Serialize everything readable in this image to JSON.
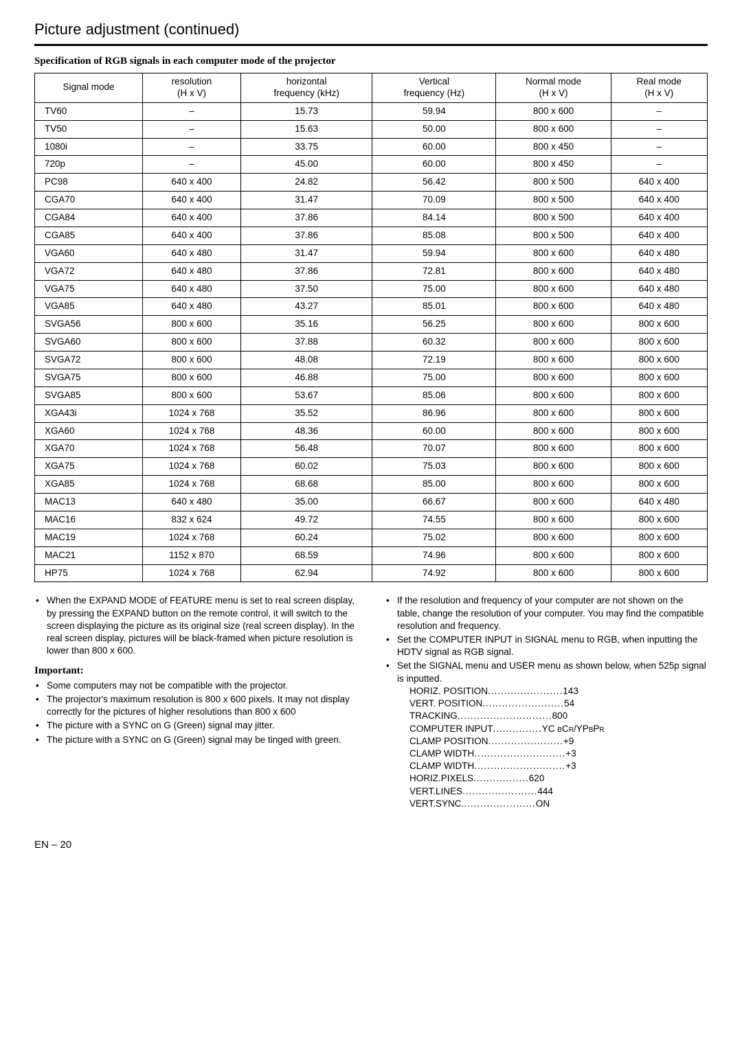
{
  "title": "Picture adjustment (continued)",
  "subtitle": "Specification of RGB signals in each computer mode of the projector",
  "table": {
    "headers": [
      "Signal mode",
      "resolution\n(H x V)",
      "horizontal\nfrequency (kHz)",
      "Vertical\nfrequency (Hz)",
      "Normal mode\n(H x V)",
      "Real mode\n(H x V)"
    ],
    "rows": [
      [
        "TV60",
        "–",
        "15.73",
        "59.94",
        "800 x 600",
        "–"
      ],
      [
        "TV50",
        "–",
        "15.63",
        "50.00",
        "800 x 600",
        "–"
      ],
      [
        "1080i",
        "–",
        "33.75",
        "60.00",
        "800 x 450",
        "–"
      ],
      [
        "720p",
        "–",
        "45.00",
        "60.00",
        "800 x 450",
        "–"
      ],
      [
        "PC98",
        "640 x 400",
        "24.82",
        "56.42",
        "800 x 500",
        "640 x 400"
      ],
      [
        "CGA70",
        "640 x 400",
        "31.47",
        "70.09",
        "800 x 500",
        "640 x 400"
      ],
      [
        "CGA84",
        "640 x 400",
        "37.86",
        "84.14",
        "800 x 500",
        "640 x 400"
      ],
      [
        "CGA85",
        "640 x 400",
        "37.86",
        "85.08",
        "800 x 500",
        "640 x 400"
      ],
      [
        "VGA60",
        "640 x 480",
        "31.47",
        "59.94",
        "800 x 600",
        "640 x 480"
      ],
      [
        "VGA72",
        "640 x 480",
        "37.86",
        "72.81",
        "800 x 600",
        "640 x 480"
      ],
      [
        "VGA75",
        "640 x 480",
        "37.50",
        "75.00",
        "800 x 600",
        "640 x 480"
      ],
      [
        "VGA85",
        "640 x 480",
        "43.27",
        "85.01",
        "800 x 600",
        "640 x 480"
      ],
      [
        "SVGA56",
        "800 x 600",
        "35.16",
        "56.25",
        "800 x 600",
        "800 x 600"
      ],
      [
        "SVGA60",
        "800 x 600",
        "37.88",
        "60.32",
        "800 x 600",
        "800 x 600"
      ],
      [
        "SVGA72",
        "800 x 600",
        "48.08",
        "72.19",
        "800 x 600",
        "800 x 600"
      ],
      [
        "SVGA75",
        "800 x 600",
        "46.88",
        "75.00",
        "800 x 600",
        "800 x 600"
      ],
      [
        "SVGA85",
        "800 x 600",
        "53.67",
        "85.06",
        "800 x 600",
        "800 x 600"
      ],
      [
        "XGA43i",
        "1024 x 768",
        "35.52",
        "86.96",
        "800 x 600",
        "800 x 600"
      ],
      [
        "XGA60",
        "1024 x 768",
        "48.36",
        "60.00",
        "800 x 600",
        "800 x 600"
      ],
      [
        "XGA70",
        "1024 x 768",
        "56.48",
        "70.07",
        "800 x 600",
        "800 x 600"
      ],
      [
        "XGA75",
        "1024 x 768",
        "60.02",
        "75.03",
        "800 x 600",
        "800 x 600"
      ],
      [
        "XGA85",
        "1024 x 768",
        "68.68",
        "85.00",
        "800 x 600",
        "800 x 600"
      ],
      [
        "MAC13",
        "640 x 480",
        "35.00",
        "66.67",
        "800 x 600",
        "640 x 480"
      ],
      [
        "MAC16",
        "832 x 624",
        "49.72",
        "74.55",
        "800 x 600",
        "800 x 600"
      ],
      [
        "MAC19",
        "1024 x 768",
        "60.24",
        "75.02",
        "800 x 600",
        "800 x 600"
      ],
      [
        "MAC21",
        "1152 x 870",
        "68.59",
        "74.96",
        "800 x 600",
        "800 x 600"
      ],
      [
        "HP75",
        "1024 x 768",
        "62.94",
        "74.92",
        "800 x 600",
        "800 x 600"
      ]
    ]
  },
  "left_col": {
    "first_bullet": "When the EXPAND MODE of FEATURE menu is set to real screen display, by pressing the EXPAND button on the remote control, it will switch to the screen displaying the picture as its original size (real screen display).  In the real screen display, pictures will be black-framed when picture resolution is lower than 800 x 600.",
    "important_label": "Important:",
    "important_items": [
      "Some computers may not be compatible with the projector.",
      "The projector's maximum resolution is     800 x 600 pixels.  It may not display correctly for the pictures of higher resolutions than    800 x 600",
      "The picture with a SYNC on G (Green) signal may jitter.",
      "The picture with a SYNC on G (Green) signal may be tinged with green."
    ]
  },
  "right_col": {
    "bullets": [
      "If the resolution and frequency of your computer are not shown on the table, change the resolution of your computer. You may find the compatible resolution and frequency.",
      "Set the COMPUTER INPUT in SIGNAL menu to RGB, when inputting the HDTV signal as RGB signal.",
      "Set the SIGNAL menu and USER menu as shown below, when 525p signal is inputted."
    ],
    "settings": [
      {
        "label": "HORIZ. POSITION",
        "dots": ".......................",
        "value": "  143"
      },
      {
        "label": "VERT. POSITION",
        "dots": ".........................",
        "value": "  54"
      },
      {
        "label": "TRACKING",
        "dots": ".............................",
        "value": " 800"
      },
      {
        "label": "COMPUTER INPUT",
        "dots": "...............",
        "value": " YC BCR/YPBPR",
        "special": true
      },
      {
        "label": "CLAMP POSITION",
        "dots": ".......................",
        "value": "  +9"
      },
      {
        "label": "CLAMP WIDTH",
        "dots": "............................",
        "value": "  +3"
      },
      {
        "label": "CLAMP WIDTH",
        "dots": "............................",
        "value": "  +3"
      },
      {
        "label": "HORIZ.PIXELS",
        "dots": ".................",
        "value": "  620"
      },
      {
        "label": "VERT.LINES",
        "dots": ".......................",
        "value": "  444"
      },
      {
        "label": "VERT.SYNC.",
        "dots": "......................",
        "value": " ON"
      }
    ]
  },
  "page_num": "EN – 20"
}
